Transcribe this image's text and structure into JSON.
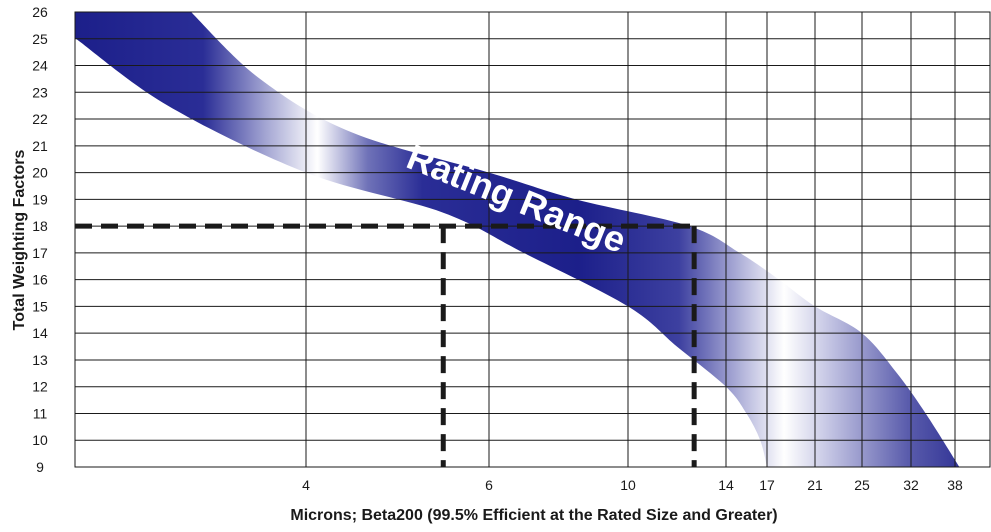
{
  "chart_data": {
    "type": "area",
    "xlabel": "Microns; Beta200 (99.5% Efficient at the Rated Size and Greater)",
    "ylabel": "Total Weighting Factors",
    "x_ticks": [
      4,
      6,
      10,
      14,
      17,
      21,
      25,
      32,
      38
    ],
    "y_ticks": [
      9,
      10,
      11,
      12,
      13,
      14,
      15,
      16,
      17,
      18,
      19,
      20,
      21,
      22,
      23,
      24,
      25,
      26
    ],
    "ylim": [
      9,
      26
    ],
    "grid": true,
    "band": {
      "label": "Rating Range",
      "upper_edge": [
        {
          "x": 3.0,
          "y": 26.0
        },
        {
          "x": 3.6,
          "y": 23.5
        },
        {
          "x": 4.5,
          "y": 21.5
        },
        {
          "x": 6.0,
          "y": 20.0
        },
        {
          "x": 8.5,
          "y": 19.0
        },
        {
          "x": 12.5,
          "y": 18.0
        },
        {
          "x": 15.0,
          "y": 17.0
        },
        {
          "x": 18.0,
          "y": 16.0
        },
        {
          "x": 21.0,
          "y": 15.0
        },
        {
          "x": 25.0,
          "y": 14.0
        },
        {
          "x": 30.0,
          "y": 12.5
        },
        {
          "x": 34.0,
          "y": 11.0
        },
        {
          "x": 38.5,
          "y": 9.0
        }
      ],
      "lower_edge": [
        {
          "x": 2.0,
          "y": 25.0
        },
        {
          "x": 2.8,
          "y": 22.5
        },
        {
          "x": 4.0,
          "y": 20.0
        },
        {
          "x": 5.5,
          "y": 18.5
        },
        {
          "x": 7.0,
          "y": 17.0
        },
        {
          "x": 10.0,
          "y": 15.0
        },
        {
          "x": 12.0,
          "y": 13.5
        },
        {
          "x": 14.0,
          "y": 12.0
        },
        {
          "x": 15.5,
          "y": 11.0
        },
        {
          "x": 16.5,
          "y": 10.0
        },
        {
          "x": 17.0,
          "y": 9.0
        }
      ]
    },
    "reference_lines": [
      {
        "orientation": "horizontal",
        "y": 18,
        "x_to": 12.7
      },
      {
        "orientation": "vertical",
        "x": 5.5,
        "y_to": 18
      },
      {
        "orientation": "vertical",
        "x": 12.7,
        "y_to": 18
      }
    ],
    "colors": {
      "band_dark": "#1c1f8a",
      "band_light": "#ffffff",
      "grid": "#1a1a1a",
      "reference_line": "#1a1a1a"
    }
  }
}
